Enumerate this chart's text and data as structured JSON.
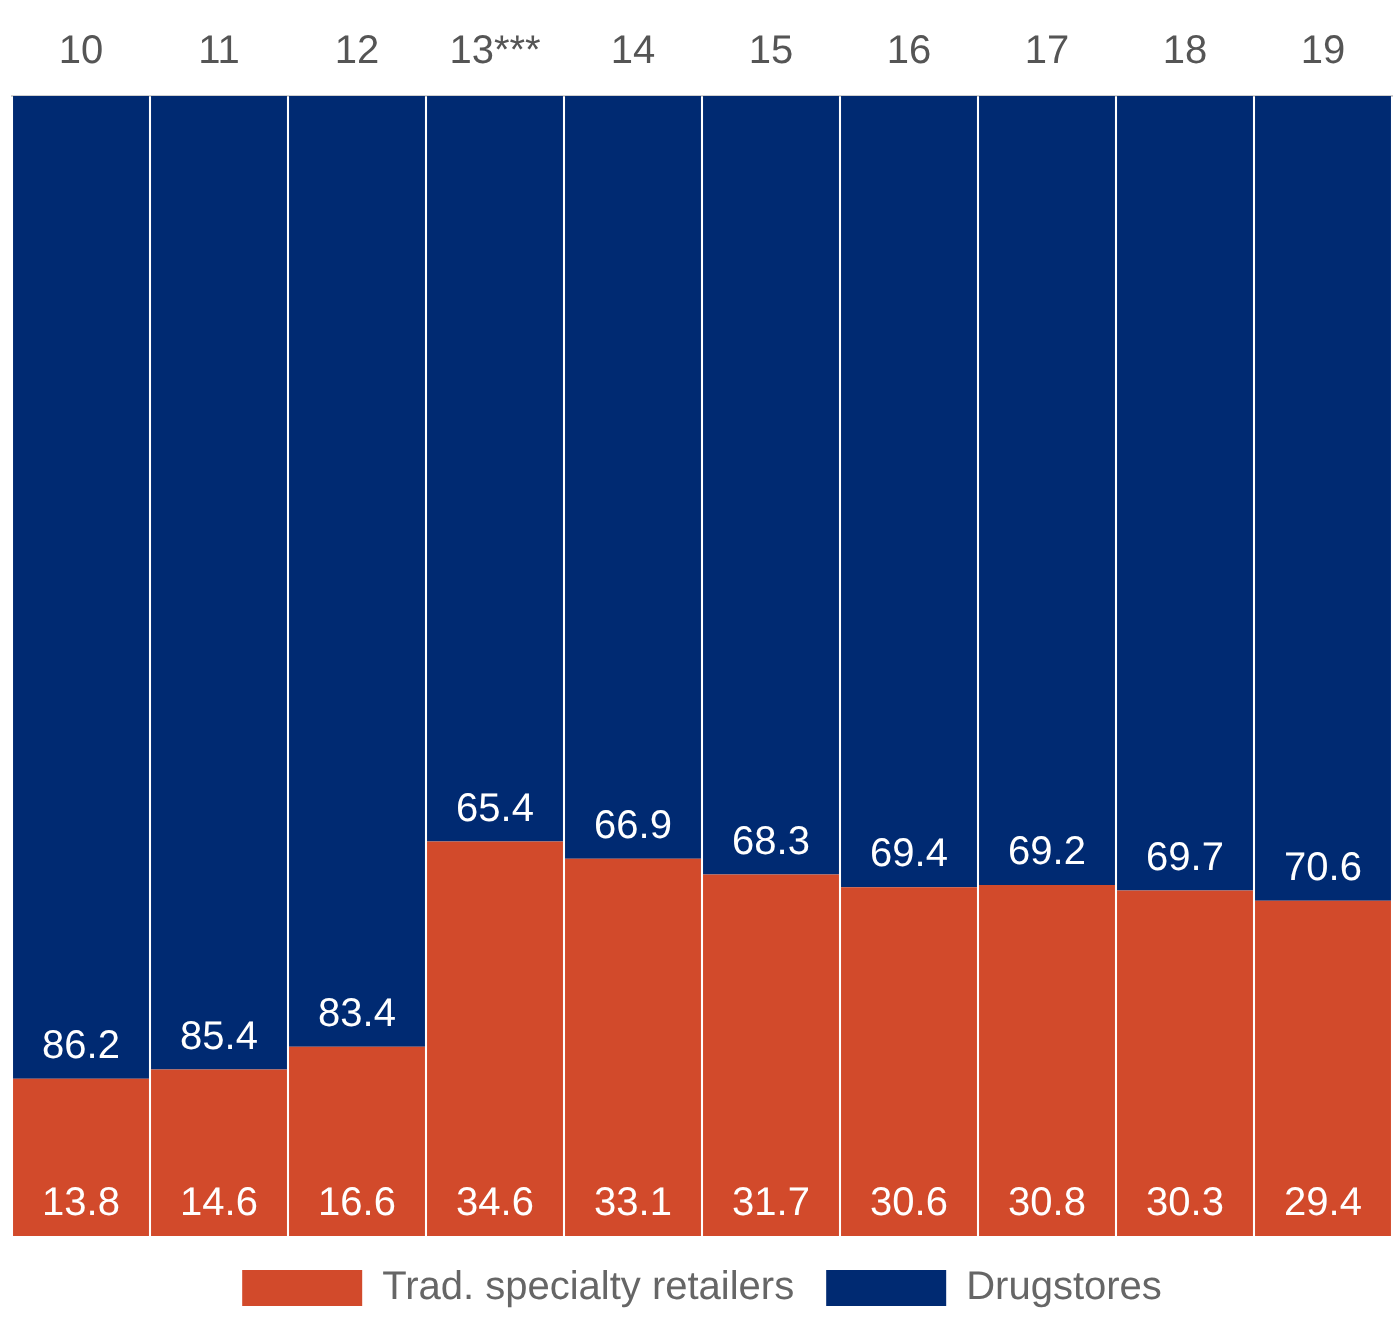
{
  "chart_data": {
    "type": "bar",
    "stacked": true,
    "data_labels": true,
    "legend": "bottom",
    "grid": false,
    "tick_labels": "x",
    "categories": [
      "10",
      "11",
      "12",
      "13***",
      "14",
      "15",
      "16",
      "17",
      "18",
      "19"
    ],
    "series": [
      {
        "name": "Trad. specialty retailers",
        "color": "#d24a2b",
        "values": [
          13.8,
          14.6,
          16.6,
          34.6,
          33.1,
          31.7,
          30.6,
          30.8,
          30.3,
          29.4
        ]
      },
      {
        "name": "Drugstores",
        "color": "#002a72",
        "values": [
          86.2,
          85.4,
          83.4,
          65.4,
          66.9,
          68.3,
          69.4,
          69.2,
          69.7,
          70.6
        ]
      }
    ]
  }
}
